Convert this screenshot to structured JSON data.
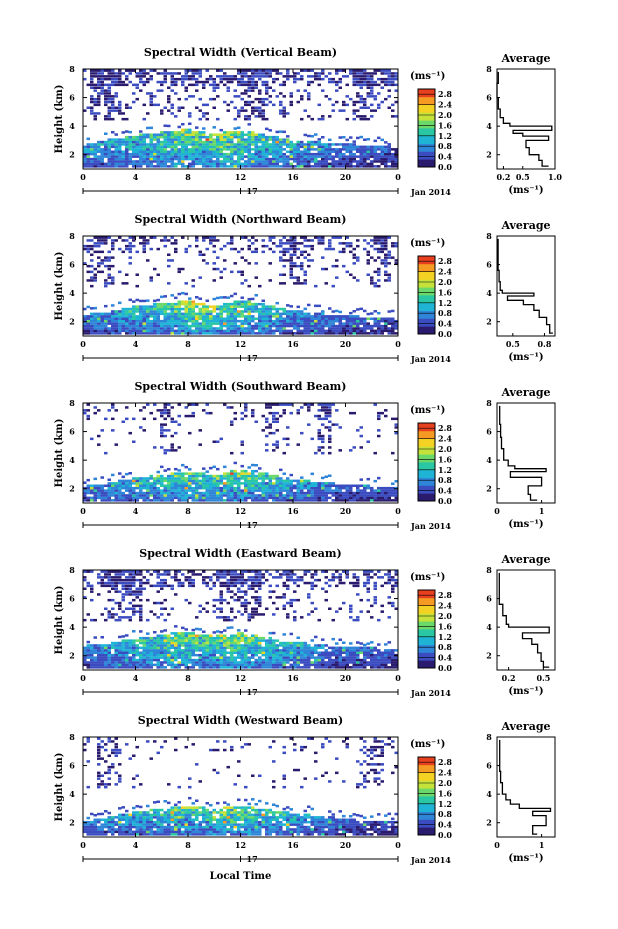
{
  "figure": {
    "xlabel": "Local Time",
    "ylabel": "Height (km)",
    "avg_title": "Average",
    "colorbar_unit": "(ms⁻¹)",
    "avg_xlabel": "(ms⁻¹)",
    "day_label": "17",
    "date_label": "Jan 2014",
    "colorscale": [
      "#2a1b6e",
      "#3b4cc0",
      "#2f86d8",
      "#1fb3d6",
      "#29c7a3",
      "#6bd86a",
      "#c4e23a",
      "#f4d223",
      "#f59a22",
      "#e8401f"
    ]
  },
  "chart_data": [
    {
      "type": "heatmap",
      "title": "Spectral Width (Vertical Beam)",
      "x_ticks": [
        "0",
        "4",
        "8",
        "12",
        "16",
        "20",
        "0"
      ],
      "y_ticks": [
        "2",
        "4",
        "6",
        "8"
      ],
      "xlim": [
        0,
        24
      ],
      "ylim": [
        1,
        8
      ],
      "colorbar": {
        "ticks": [
          "0.0",
          "0.4",
          "0.8",
          "1.2",
          "1.6",
          "2.0",
          "2.4",
          "2.8"
        ],
        "range": [
          0,
          3.0
        ]
      },
      "average": {
        "title": "Average",
        "x_ticks": [
          "0.2",
          "0.5",
          "1.0"
        ],
        "xlim": [
          0.1,
          1.0
        ],
        "ylim": [
          1,
          8
        ],
        "profile": [
          [
            0.9,
            1.2
          ],
          [
            0.8,
            1.6
          ],
          [
            0.75,
            2.0
          ],
          [
            0.6,
            2.5
          ],
          [
            0.55,
            3.0
          ],
          [
            0.9,
            3.3
          ],
          [
            0.5,
            3.5
          ],
          [
            0.35,
            3.7
          ],
          [
            0.95,
            4.0
          ],
          [
            0.3,
            4.2
          ],
          [
            0.2,
            4.6
          ],
          [
            0.15,
            5.2
          ],
          [
            0.12,
            6.0
          ],
          [
            0.1,
            7.0
          ],
          [
            0.12,
            7.8
          ]
        ]
      },
      "field": {
        "layer_top": [
          2.6,
          2.8,
          3.0,
          3.1,
          3.3,
          3.4,
          3.5,
          3.6,
          3.7,
          3.5,
          3.4,
          3.5,
          3.6,
          3.5,
          3.3,
          3.1,
          2.9,
          2.8,
          2.8,
          2.7,
          2.7,
          2.6,
          2.6,
          2.5,
          2.4
        ],
        "intensity": [
          0.7,
          0.8,
          0.9,
          1.0,
          1.0,
          1.1,
          1.2,
          1.3,
          1.4,
          1.2,
          1.3,
          1.5,
          1.4,
          1.3,
          1.1,
          1.0,
          0.9,
          0.8,
          0.7,
          0.6,
          0.6,
          0.5,
          0.5,
          0.5,
          0.4
        ],
        "aloft_cover": 0.35,
        "aloft_blocks": [
          [
            0.5,
            3.0
          ],
          [
            12,
            14
          ],
          [
            20.5,
            22.5
          ]
        ]
      }
    },
    {
      "type": "heatmap",
      "title": "Spectral Width (Northward Beam)",
      "x_ticks": [
        "0",
        "4",
        "8",
        "12",
        "16",
        "20",
        "0"
      ],
      "y_ticks": [
        "2",
        "4",
        "6",
        "8"
      ],
      "xlim": [
        0,
        24
      ],
      "ylim": [
        1,
        8
      ],
      "colorbar": {
        "ticks": [
          "0.0",
          "0.4",
          "0.8",
          "1.2",
          "1.6",
          "2.0",
          "2.4",
          "2.8"
        ],
        "range": [
          0,
          3.0
        ]
      },
      "average": {
        "title": "Average",
        "x_ticks": [
          "0.5",
          "0.8"
        ],
        "xlim": [
          0.35,
          0.9
        ],
        "ylim": [
          1,
          8
        ],
        "profile": [
          [
            0.88,
            1.2
          ],
          [
            0.85,
            1.8
          ],
          [
            0.82,
            2.3
          ],
          [
            0.75,
            2.8
          ],
          [
            0.7,
            3.2
          ],
          [
            0.6,
            3.5
          ],
          [
            0.45,
            3.8
          ],
          [
            0.7,
            4.0
          ],
          [
            0.4,
            4.2
          ],
          [
            0.38,
            4.8
          ],
          [
            0.37,
            5.6
          ],
          [
            0.36,
            6.5
          ],
          [
            0.36,
            7.8
          ]
        ]
      },
      "field": {
        "layer_top": [
          2.4,
          2.5,
          2.6,
          2.8,
          3.0,
          3.1,
          3.2,
          3.3,
          3.4,
          3.2,
          3.0,
          3.2,
          3.4,
          3.3,
          3.1,
          2.9,
          2.7,
          2.6,
          2.5,
          2.4,
          2.3,
          2.3,
          2.2,
          2.2,
          2.1
        ],
        "intensity": [
          0.6,
          0.7,
          0.8,
          0.9,
          1.0,
          1.1,
          1.2,
          1.3,
          1.4,
          1.5,
          1.4,
          1.3,
          1.2,
          1.2,
          1.0,
          0.9,
          0.8,
          0.7,
          0.6,
          0.6,
          0.5,
          0.5,
          0.5,
          0.4,
          0.4
        ],
        "aloft_cover": 0.22,
        "aloft_blocks": [
          [
            0.5,
            2.5
          ],
          [
            15,
            17
          ],
          [
            22,
            23.5
          ]
        ]
      }
    },
    {
      "type": "heatmap",
      "title": "Spectral Width (Southward Beam)",
      "x_ticks": [
        "0",
        "4",
        "8",
        "12",
        "16",
        "20",
        "0"
      ],
      "y_ticks": [
        "2",
        "4",
        "6",
        "8"
      ],
      "xlim": [
        0,
        24
      ],
      "ylim": [
        1,
        8
      ],
      "colorbar": {
        "ticks": [
          "0.0",
          "0.4",
          "0.8",
          "1.2",
          "1.6",
          "2.0",
          "2.4",
          "2.8"
        ],
        "range": [
          0,
          3.0
        ]
      },
      "average": {
        "title": "Average",
        "x_ticks": [
          "0",
          "1"
        ],
        "xlim": [
          0,
          1.3
        ],
        "ylim": [
          1,
          8
        ],
        "profile": [
          [
            0.9,
            1.2
          ],
          [
            0.75,
            1.6
          ],
          [
            0.7,
            2.2
          ],
          [
            1.0,
            2.8
          ],
          [
            0.3,
            3.2
          ],
          [
            1.1,
            3.4
          ],
          [
            0.4,
            3.6
          ],
          [
            0.25,
            4.0
          ],
          [
            0.15,
            4.8
          ],
          [
            0.1,
            5.6
          ],
          [
            0.08,
            6.5
          ],
          [
            0.06,
            7.8
          ]
        ]
      },
      "field": {
        "layer_top": [
          2.1,
          2.2,
          2.3,
          2.5,
          2.7,
          2.8,
          2.9,
          3.0,
          3.1,
          3.0,
          2.9,
          3.1,
          3.3,
          3.2,
          3.0,
          2.8,
          2.6,
          2.5,
          2.4,
          2.3,
          2.2,
          2.2,
          2.1,
          2.1,
          2.0
        ],
        "intensity": [
          0.6,
          0.7,
          0.8,
          0.9,
          0.9,
          1.0,
          1.1,
          1.2,
          1.2,
          1.1,
          1.2,
          1.3,
          1.4,
          1.3,
          1.1,
          1.0,
          0.9,
          0.8,
          0.7,
          0.6,
          0.5,
          0.5,
          0.5,
          0.4,
          0.4
        ],
        "aloft_cover": 0.12,
        "aloft_blocks": [
          [
            6,
            7
          ],
          [
            14,
            15
          ],
          [
            18,
            19
          ]
        ]
      }
    },
    {
      "type": "heatmap",
      "title": "Spectral Width (Eastward Beam)",
      "x_ticks": [
        "0",
        "4",
        "8",
        "12",
        "16",
        "20",
        "0"
      ],
      "y_ticks": [
        "2",
        "4",
        "6",
        "8"
      ],
      "xlim": [
        0,
        24
      ],
      "ylim": [
        1,
        8
      ],
      "colorbar": {
        "ticks": [
          "0.0",
          "0.4",
          "0.8",
          "1.2",
          "1.6",
          "2.0",
          "2.4",
          "2.8"
        ],
        "range": [
          0,
          3.0
        ]
      },
      "average": {
        "title": "Average",
        "x_ticks": [
          "0.2",
          "0.5"
        ],
        "xlim": [
          0.1,
          0.6
        ],
        "ylim": [
          1,
          8
        ],
        "profile": [
          [
            0.55,
            1.2
          ],
          [
            0.5,
            1.6
          ],
          [
            0.48,
            2.2
          ],
          [
            0.45,
            2.8
          ],
          [
            0.4,
            3.2
          ],
          [
            0.32,
            3.6
          ],
          [
            0.55,
            4.0
          ],
          [
            0.2,
            4.2
          ],
          [
            0.18,
            4.8
          ],
          [
            0.15,
            5.6
          ],
          [
            0.12,
            6.5
          ],
          [
            0.12,
            7.8
          ]
        ]
      },
      "field": {
        "layer_top": [
          2.6,
          2.7,
          2.8,
          3.0,
          3.1,
          3.2,
          3.4,
          3.5,
          3.6,
          3.4,
          3.3,
          3.4,
          3.5,
          3.4,
          3.2,
          3.0,
          2.9,
          2.8,
          2.7,
          2.6,
          2.6,
          2.5,
          2.5,
          2.4,
          2.4
        ],
        "intensity": [
          0.6,
          0.7,
          0.8,
          0.9,
          1.0,
          1.1,
          1.2,
          1.3,
          1.3,
          1.2,
          1.3,
          1.4,
          1.4,
          1.2,
          1.1,
          1.0,
          0.9,
          0.8,
          0.7,
          0.6,
          0.6,
          0.5,
          0.5,
          0.5,
          0.4
        ],
        "aloft_cover": 0.3,
        "aloft_blocks": [
          [
            1.5,
            4.5
          ],
          [
            10.5,
            13.5
          ]
        ]
      }
    },
    {
      "type": "heatmap",
      "title": "Spectral Width (Westward Beam)",
      "x_ticks": [
        "0",
        "4",
        "8",
        "12",
        "16",
        "20",
        "0"
      ],
      "y_ticks": [
        "2",
        "4",
        "6",
        "8"
      ],
      "xlim": [
        0,
        24
      ],
      "ylim": [
        1,
        8
      ],
      "colorbar": {
        "ticks": [
          "0.0",
          "0.4",
          "0.8",
          "1.2",
          "1.6",
          "2.0",
          "2.4",
          "2.8"
        ],
        "range": [
          0,
          3.0
        ]
      },
      "average": {
        "title": "Average",
        "x_ticks": [
          "0",
          "1"
        ],
        "xlim": [
          0,
          1.3
        ],
        "ylim": [
          1,
          8
        ],
        "profile": [
          [
            0.9,
            1.2
          ],
          [
            0.8,
            1.8
          ],
          [
            1.1,
            2.5
          ],
          [
            0.8,
            2.8
          ],
          [
            1.2,
            3.0
          ],
          [
            0.5,
            3.3
          ],
          [
            0.3,
            3.6
          ],
          [
            0.2,
            4.0
          ],
          [
            0.12,
            4.8
          ],
          [
            0.08,
            5.6
          ],
          [
            0.06,
            6.5
          ],
          [
            0.06,
            7.8
          ]
        ]
      },
      "field": {
        "layer_top": [
          2.0,
          2.2,
          2.3,
          2.5,
          2.7,
          2.8,
          2.9,
          3.0,
          3.1,
          3.0,
          2.9,
          3.0,
          3.1,
          3.0,
          2.9,
          2.7,
          2.6,
          2.5,
          2.4,
          2.3,
          2.2,
          2.1,
          2.1,
          2.0,
          2.0
        ],
        "intensity": [
          0.6,
          0.7,
          0.8,
          0.8,
          0.9,
          1.0,
          1.1,
          1.2,
          1.2,
          1.1,
          1.3,
          1.4,
          1.3,
          1.2,
          1.1,
          1.0,
          0.9,
          0.8,
          0.7,
          0.6,
          0.5,
          0.5,
          0.4,
          0.4,
          0.4
        ],
        "aloft_cover": 0.08,
        "aloft_blocks": [
          [
            1,
            3
          ],
          [
            21,
            23
          ]
        ]
      }
    }
  ]
}
